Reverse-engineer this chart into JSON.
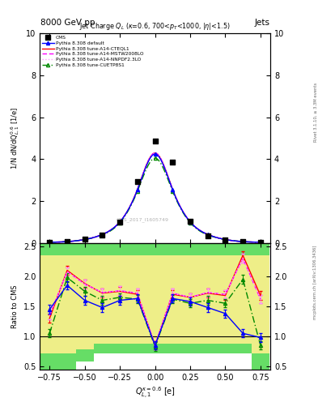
{
  "title_top": "8000 GeV pp",
  "title_right": "Jets",
  "watermark": "CMS_2017_I1605749",
  "rivet_text": "Rivet 3.1.10, ≥ 3.3M events",
  "mcplots_text": "mcplots.cern.ch [arXiv:1306.3436]",
  "x_values": [
    -0.75,
    -0.625,
    -0.5,
    -0.375,
    -0.25,
    -0.125,
    0.0,
    0.125,
    0.25,
    0.375,
    0.5,
    0.625,
    0.75
  ],
  "cms_data": [
    0.05,
    0.08,
    0.18,
    0.4,
    1.0,
    2.95,
    4.85,
    3.85,
    1.05,
    0.35,
    0.16,
    0.08,
    0.05
  ],
  "pythia_default": [
    0.05,
    0.08,
    0.18,
    0.42,
    1.02,
    2.55,
    4.25,
    2.55,
    1.02,
    0.42,
    0.18,
    0.08,
    0.05
  ],
  "pythia_cteql1": [
    0.05,
    0.08,
    0.18,
    0.42,
    1.02,
    2.57,
    4.3,
    2.57,
    1.02,
    0.42,
    0.18,
    0.08,
    0.05
  ],
  "pythia_mstw": [
    0.05,
    0.08,
    0.18,
    0.42,
    1.02,
    2.57,
    4.3,
    2.57,
    1.02,
    0.42,
    0.18,
    0.08,
    0.05
  ],
  "pythia_nnpdf": [
    0.05,
    0.08,
    0.18,
    0.42,
    1.02,
    2.57,
    4.3,
    2.57,
    1.02,
    0.42,
    0.18,
    0.08,
    0.05
  ],
  "pythia_cuetp": [
    0.05,
    0.08,
    0.18,
    0.4,
    0.98,
    2.48,
    4.05,
    2.48,
    0.98,
    0.4,
    0.18,
    0.08,
    0.05
  ],
  "ratio_default": [
    1.45,
    1.85,
    1.6,
    1.48,
    1.6,
    1.63,
    0.85,
    1.63,
    1.58,
    1.48,
    1.38,
    1.05,
    0.98
  ],
  "ratio_cteql1": [
    1.3,
    2.1,
    1.88,
    1.72,
    1.75,
    1.7,
    0.85,
    1.7,
    1.65,
    1.72,
    1.68,
    2.35,
    1.68
  ],
  "ratio_mstw": [
    1.35,
    2.08,
    1.87,
    1.73,
    1.76,
    1.72,
    0.85,
    1.72,
    1.65,
    1.73,
    1.7,
    2.3,
    1.62
  ],
  "ratio_nnpdf": [
    1.35,
    2.08,
    1.87,
    1.73,
    1.76,
    1.72,
    0.85,
    1.72,
    1.65,
    1.73,
    1.7,
    2.3,
    1.62
  ],
  "ratio_cuetp": [
    1.05,
    1.98,
    1.75,
    1.6,
    1.65,
    1.62,
    0.83,
    1.62,
    1.55,
    1.6,
    1.55,
    1.95,
    0.85
  ],
  "color_default": "#0000ff",
  "color_cteql1": "#ff0000",
  "color_mstw": "#ff00ff",
  "color_nnpdf": "#ff99ff",
  "color_cuetp": "#008800",
  "ylim_main": [
    0,
    10
  ],
  "ylim_ratio": [
    0.45,
    2.55
  ],
  "xlim": [
    -0.82,
    0.82
  ],
  "green_color": "#66dd66",
  "yellow_color": "#eeee88",
  "band_x_edges": [
    -0.8125,
    -0.6875,
    -0.5625,
    -0.4375,
    -0.3125,
    -0.1875,
    -0.0625,
    0.0625,
    0.1875,
    0.3125,
    0.4375,
    0.5625,
    0.6875,
    0.8125
  ],
  "green_lo": [
    0.45,
    0.45,
    0.58,
    0.72,
    0.72,
    0.72,
    0.72,
    0.72,
    0.72,
    0.72,
    0.72,
    0.72,
    0.45,
    0.45
  ],
  "green_hi": [
    2.55,
    2.55,
    2.55,
    2.55,
    2.55,
    2.55,
    2.55,
    2.55,
    2.55,
    2.55,
    2.55,
    2.55,
    2.55,
    2.55
  ],
  "yellow_lo": [
    0.72,
    0.72,
    0.78,
    0.88,
    0.88,
    0.88,
    0.88,
    0.88,
    0.88,
    0.88,
    0.88,
    0.88,
    0.72,
    0.72
  ],
  "yellow_hi": [
    2.35,
    2.35,
    2.35,
    2.35,
    2.35,
    2.35,
    2.35,
    2.35,
    2.35,
    2.35,
    2.35,
    2.35,
    2.35,
    2.35
  ]
}
